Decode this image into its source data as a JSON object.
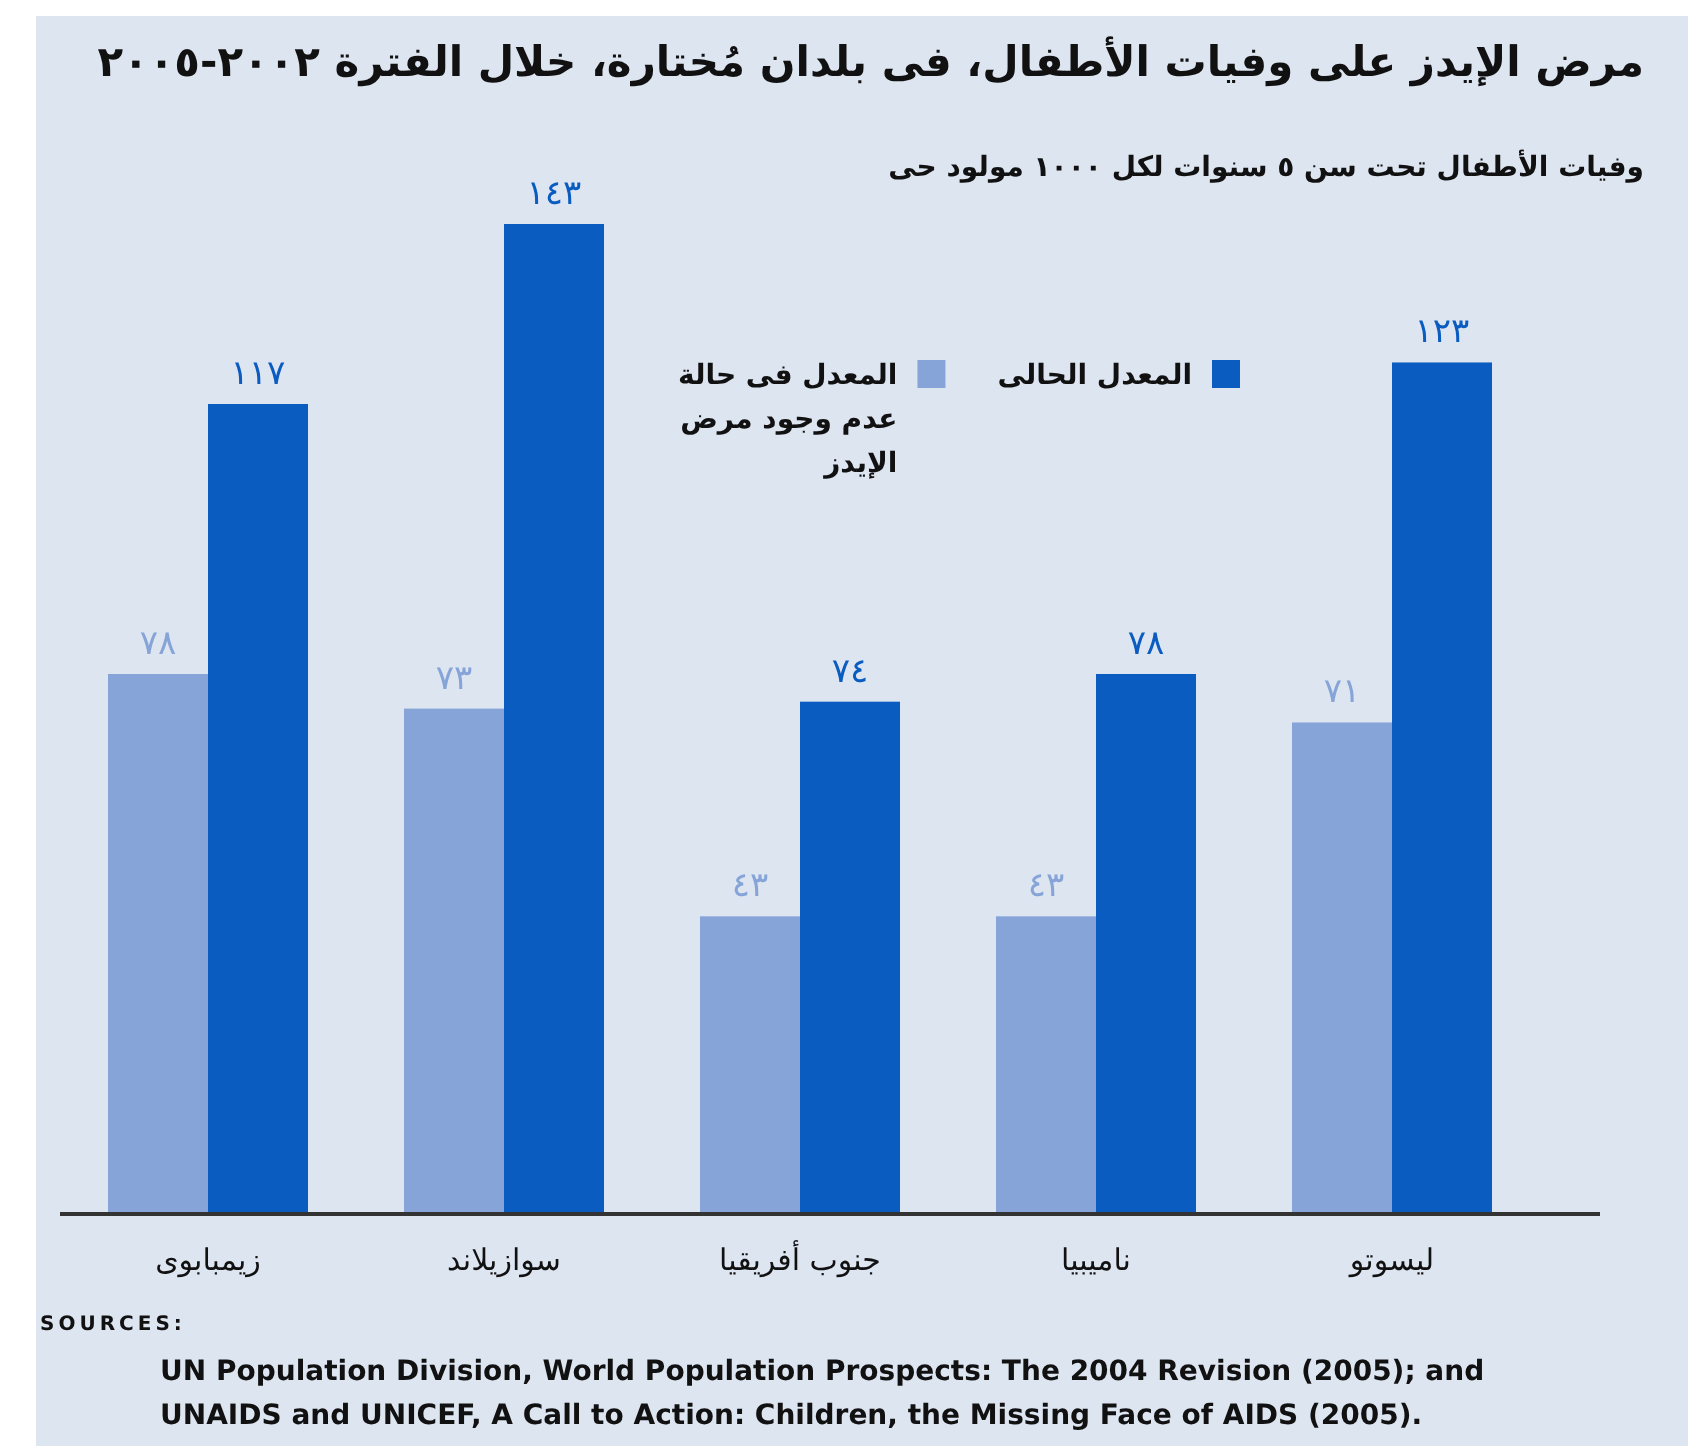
{
  "chart_data": {
    "type": "bar",
    "title": "مرض الإيدز على وفيات الأطفال، فى بلدان مُختارة، خلال الفترة ٢٠٠٢-٢٠٠٥",
    "subtitle": "وفيات الأطفال تحت سن ٥ سنوات لكل ١٠٠٠ مولود حى",
    "categories": [
      "زيمبابوى",
      "سوازيلاند",
      "جنوب أفريقيا",
      "ناميبيا",
      "ليسوتو"
    ],
    "series": [
      {
        "name": "المعدل فى حالة عدم وجود مرض الإيدز",
        "color": "#86a4d8",
        "values": [
          78,
          73,
          43,
          43,
          71
        ],
        "value_labels": [
          "٧٨",
          "٧٣",
          "٤٣",
          "٤٣",
          "٧١"
        ]
      },
      {
        "name": "المعدل الحالى",
        "color": "#0b5cc0",
        "values": [
          117,
          143,
          74,
          78,
          123
        ],
        "value_labels": [
          "١١٧",
          "١٤٣",
          "٧٤",
          "٧٨",
          "١٢٣"
        ]
      }
    ],
    "legend": "top",
    "annotations": [
      "SOURCES:",
      "UN Population Division, World Population Prospects: The 2004 Revision (2005); and UNAIDS and UNICEF, A Call to Action: Children, the Missing Face of AIDS (2005)."
    ]
  }
}
